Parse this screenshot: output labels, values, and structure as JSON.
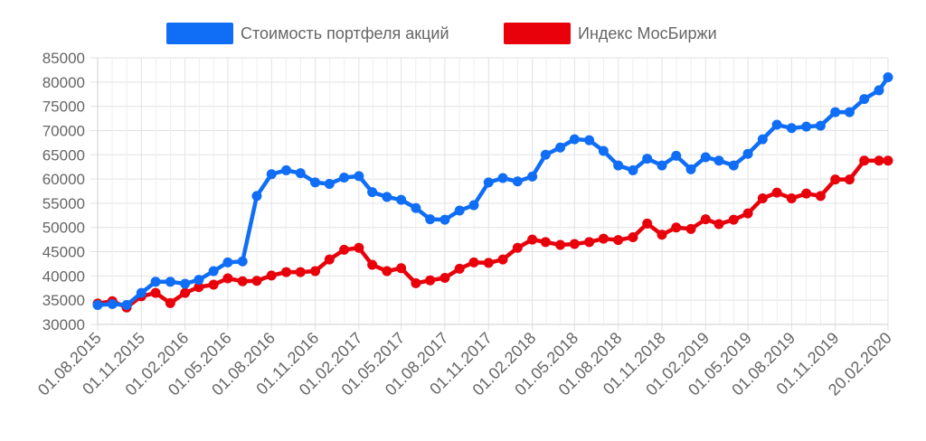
{
  "chart_data": {
    "type": "line",
    "title": "",
    "xlabel": "",
    "ylabel": "",
    "ylim": [
      30000,
      85000
    ],
    "y_ticks": [
      30000,
      35000,
      40000,
      45000,
      50000,
      55000,
      60000,
      65000,
      70000,
      75000,
      80000,
      85000
    ],
    "grid": true,
    "legend_position": "top",
    "x_tick_labels": [
      "01.08.2015",
      "01.11.2015",
      "01.02.2016",
      "01.05.2016",
      "01.08.2016",
      "01.11.2016",
      "01.02.2017",
      "01.05.2017",
      "01.08.2017",
      "01.11.2017",
      "01.02.2018",
      "01.05.2018",
      "01.08.2018",
      "01.11.2018",
      "01.02.2019",
      "01.05.2019",
      "01.08.2019",
      "01.11.2019",
      "20.02.2020"
    ],
    "x": [
      "2015-08-01",
      "2015-09-01",
      "2015-10-01",
      "2015-11-01",
      "2015-12-01",
      "2016-01-01",
      "2016-02-01",
      "2016-03-01",
      "2016-04-01",
      "2016-05-01",
      "2016-06-01",
      "2016-07-01",
      "2016-08-01",
      "2016-09-01",
      "2016-10-01",
      "2016-11-01",
      "2016-12-01",
      "2017-01-01",
      "2017-02-01",
      "2017-03-01",
      "2017-04-01",
      "2017-05-01",
      "2017-06-01",
      "2017-07-01",
      "2017-08-01",
      "2017-09-01",
      "2017-10-01",
      "2017-11-01",
      "2017-12-01",
      "2018-01-01",
      "2018-02-01",
      "2018-03-01",
      "2018-04-01",
      "2018-05-01",
      "2018-06-01",
      "2018-07-01",
      "2018-08-01",
      "2018-09-01",
      "2018-10-01",
      "2018-11-01",
      "2018-12-01",
      "2019-01-01",
      "2019-02-01",
      "2019-03-01",
      "2019-04-01",
      "2019-05-01",
      "2019-06-01",
      "2019-07-01",
      "2019-08-01",
      "2019-09-01",
      "2019-10-01",
      "2019-11-01",
      "2019-12-01",
      "2020-01-01",
      "2020-02-01",
      "2020-02-20"
    ],
    "series": [
      {
        "name": "Стоимость портфеля акций",
        "color": "#0f6ef5",
        "values": [
          34000,
          34200,
          34000,
          36500,
          38800,
          38800,
          38400,
          39200,
          41000,
          42800,
          43000,
          56500,
          61000,
          61800,
          61200,
          59300,
          59000,
          60300,
          60600,
          57300,
          56300,
          55700,
          54000,
          51700,
          51600,
          53500,
          54600,
          59300,
          60200,
          59500,
          60500,
          65000,
          66500,
          68200,
          68000,
          65800,
          62800,
          61800,
          64200,
          62800,
          64800,
          62000,
          64500,
          63800,
          62800,
          65200,
          68200,
          71200,
          70500,
          70800,
          71000,
          73800,
          73800,
          76500,
          78300,
          81000
        ]
      },
      {
        "name": "Индекс МосБиржи",
        "color": "#e8000b",
        "values": [
          34300,
          34800,
          33500,
          35800,
          36500,
          34400,
          36500,
          37700,
          38200,
          39500,
          38900,
          39000,
          40100,
          40800,
          40800,
          41000,
          43400,
          45400,
          45800,
          42300,
          41000,
          41600,
          38500,
          39100,
          39600,
          41500,
          42800,
          42700,
          43400,
          45800,
          47500,
          47000,
          46400,
          46600,
          47000,
          47700,
          47400,
          48000,
          50800,
          48500,
          50000,
          49700,
          51700,
          50700,
          51600,
          52900,
          56000,
          57200,
          56000,
          57000,
          56500,
          59900,
          59900,
          63800,
          63800,
          63800
        ]
      }
    ]
  }
}
